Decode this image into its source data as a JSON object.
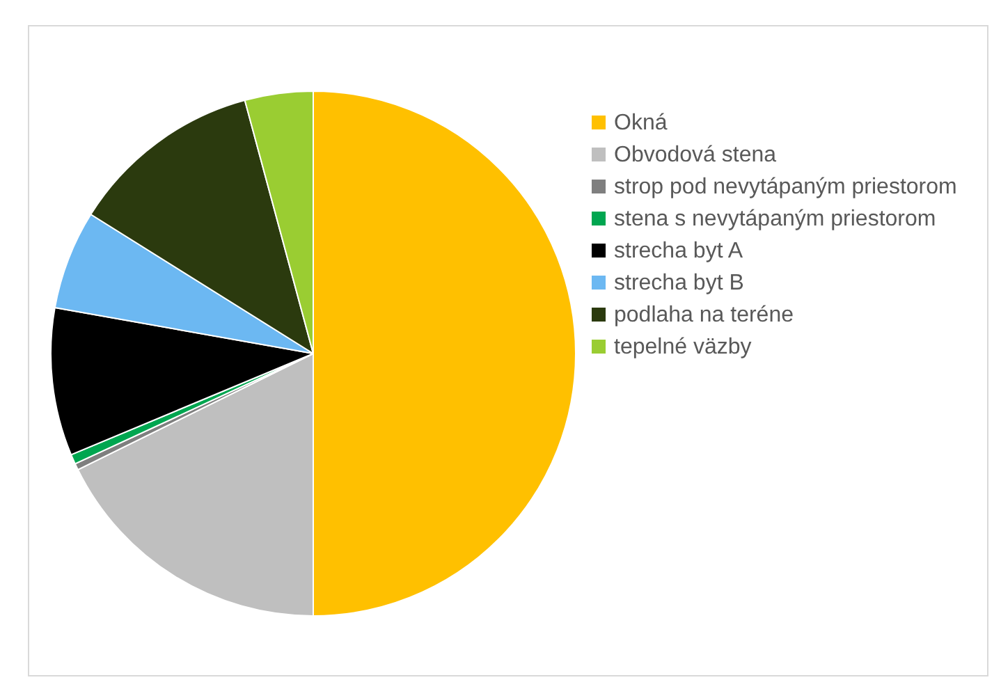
{
  "chart_data": {
    "type": "pie",
    "categories": [
      "Okná",
      "Obvodová stena",
      "strop pod nevytápaným priestorom",
      "stena s nevytápaným priestorom",
      "strecha byt A",
      "strecha byt B",
      "podlaha na teréne",
      "tepelné väzby"
    ],
    "values": [
      50,
      17.7,
      0.4,
      0.6,
      9.1,
      6.1,
      11.9,
      4.2
    ],
    "colors": [
      "#ffc000",
      "#bfbfbf",
      "#7f7f7f",
      "#00a650",
      "#000000",
      "#6cb8f2",
      "#2b3a0e",
      "#9acd32"
    ],
    "legend": "right"
  }
}
